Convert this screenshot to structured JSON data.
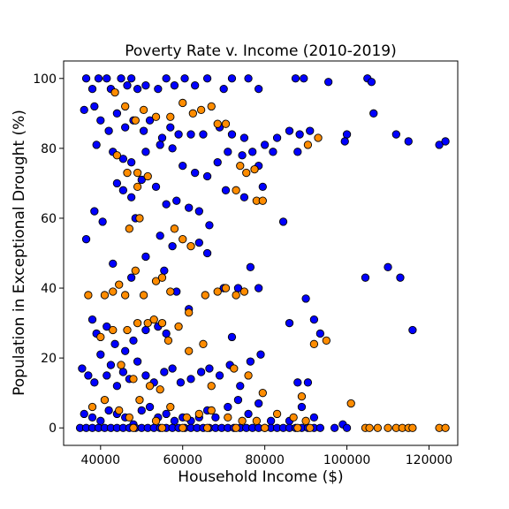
{
  "chart_data": {
    "type": "scatter",
    "title": "Poverty Rate v. Income (2010-2019)",
    "xlabel": "Household Income ($)",
    "ylabel": "Population in Exceptional Drought (%)",
    "xlim": [
      31000,
      127000
    ],
    "ylim": [
      -5,
      105
    ],
    "xticks": [
      40000,
      60000,
      80000,
      100000,
      120000
    ],
    "yticks": [
      0,
      20,
      40,
      60,
      80,
      100
    ],
    "grid": false,
    "legend": "none",
    "colors": {
      "blue": "#0000ff",
      "orange": "#ff8c00",
      "edge": "#000000"
    },
    "series": [
      {
        "color": "blue",
        "points": [
          [
            36500,
            100
          ],
          [
            38000,
            97
          ],
          [
            39500,
            100
          ],
          [
            41500,
            100
          ],
          [
            42500,
            97
          ],
          [
            45000,
            100
          ],
          [
            46500,
            98
          ],
          [
            47500,
            100
          ],
          [
            49000,
            97
          ],
          [
            51000,
            98
          ],
          [
            54000,
            97
          ],
          [
            56000,
            100
          ],
          [
            58000,
            98
          ],
          [
            60500,
            100
          ],
          [
            63000,
            98
          ],
          [
            66000,
            100
          ],
          [
            70000,
            97
          ],
          [
            72000,
            100
          ],
          [
            76000,
            100
          ],
          [
            78500,
            97
          ],
          [
            87500,
            100
          ],
          [
            89500,
            100
          ],
          [
            95500,
            99
          ],
          [
            105000,
            100
          ],
          [
            106000,
            99
          ],
          [
            36000,
            91
          ],
          [
            38500,
            92
          ],
          [
            40000,
            88
          ],
          [
            42000,
            85
          ],
          [
            44000,
            90
          ],
          [
            46000,
            86
          ],
          [
            48000,
            88
          ],
          [
            50500,
            85
          ],
          [
            52000,
            88
          ],
          [
            55000,
            83
          ],
          [
            57000,
            86
          ],
          [
            59000,
            84
          ],
          [
            62000,
            84
          ],
          [
            65000,
            84
          ],
          [
            69000,
            86
          ],
          [
            72000,
            84
          ],
          [
            75000,
            83
          ],
          [
            77000,
            79
          ],
          [
            80000,
            81
          ],
          [
            83000,
            83
          ],
          [
            86000,
            85
          ],
          [
            88500,
            84
          ],
          [
            91000,
            85
          ],
          [
            100000,
            84
          ],
          [
            106500,
            90
          ],
          [
            112000,
            84
          ],
          [
            115000,
            82
          ],
          [
            122500,
            81
          ],
          [
            124000,
            82
          ],
          [
            39000,
            81
          ],
          [
            43000,
            79
          ],
          [
            45500,
            77
          ],
          [
            47500,
            76
          ],
          [
            51000,
            79
          ],
          [
            54500,
            81
          ],
          [
            57500,
            80
          ],
          [
            60000,
            75
          ],
          [
            63000,
            73
          ],
          [
            66000,
            72
          ],
          [
            68500,
            76
          ],
          [
            71000,
            79
          ],
          [
            74500,
            78
          ],
          [
            78500,
            75
          ],
          [
            82000,
            79
          ],
          [
            88000,
            79
          ],
          [
            99500,
            82
          ],
          [
            44000,
            70
          ],
          [
            45500,
            68
          ],
          [
            47500,
            66
          ],
          [
            50000,
            71
          ],
          [
            53500,
            69
          ],
          [
            56000,
            64
          ],
          [
            58500,
            65
          ],
          [
            61500,
            63
          ],
          [
            64000,
            62
          ],
          [
            66500,
            58
          ],
          [
            70500,
            68
          ],
          [
            75000,
            66
          ],
          [
            79500,
            69
          ],
          [
            36500,
            54
          ],
          [
            38500,
            62
          ],
          [
            40500,
            59
          ],
          [
            48500,
            60
          ],
          [
            54500,
            55
          ],
          [
            57500,
            52
          ],
          [
            64000,
            53
          ],
          [
            66000,
            50
          ],
          [
            84500,
            59
          ],
          [
            43000,
            47
          ],
          [
            47500,
            43
          ],
          [
            51000,
            49
          ],
          [
            55500,
            45
          ],
          [
            58500,
            39
          ],
          [
            61500,
            34
          ],
          [
            70000,
            40
          ],
          [
            73500,
            40
          ],
          [
            76500,
            46
          ],
          [
            78500,
            40
          ],
          [
            90000,
            37
          ],
          [
            104500,
            43
          ],
          [
            110000,
            46
          ],
          [
            113000,
            43
          ],
          [
            38000,
            31
          ],
          [
            39000,
            27
          ],
          [
            41500,
            29
          ],
          [
            43500,
            24
          ],
          [
            46000,
            22
          ],
          [
            48000,
            25
          ],
          [
            51000,
            28
          ],
          [
            54000,
            29
          ],
          [
            56000,
            27
          ],
          [
            72000,
            26
          ],
          [
            86000,
            30
          ],
          [
            92000,
            31
          ],
          [
            93500,
            27
          ],
          [
            116000,
            28
          ],
          [
            35500,
            17
          ],
          [
            37000,
            15
          ],
          [
            38500,
            13
          ],
          [
            40000,
            21
          ],
          [
            41500,
            15
          ],
          [
            42500,
            18
          ],
          [
            44000,
            12
          ],
          [
            45500,
            16
          ],
          [
            47000,
            14
          ],
          [
            49000,
            19
          ],
          [
            51000,
            15
          ],
          [
            53000,
            13
          ],
          [
            55500,
            16
          ],
          [
            57500,
            17
          ],
          [
            59500,
            13
          ],
          [
            62000,
            14
          ],
          [
            64500,
            16
          ],
          [
            66500,
            17
          ],
          [
            69000,
            15
          ],
          [
            71500,
            18
          ],
          [
            74000,
            12
          ],
          [
            76500,
            19
          ],
          [
            79000,
            21
          ],
          [
            88000,
            13
          ],
          [
            90500,
            13
          ],
          [
            36000,
            4
          ],
          [
            38000,
            3
          ],
          [
            40000,
            2
          ],
          [
            42000,
            5
          ],
          [
            44000,
            4
          ],
          [
            46000,
            3
          ],
          [
            48000,
            1
          ],
          [
            50000,
            5
          ],
          [
            52000,
            6
          ],
          [
            54000,
            3
          ],
          [
            56000,
            4
          ],
          [
            58000,
            2
          ],
          [
            60000,
            3
          ],
          [
            62000,
            2
          ],
          [
            64000,
            3
          ],
          [
            66000,
            5
          ],
          [
            68000,
            3
          ],
          [
            71000,
            6
          ],
          [
            73500,
            8
          ],
          [
            76000,
            4
          ],
          [
            78500,
            7
          ],
          [
            81500,
            2
          ],
          [
            86000,
            2
          ],
          [
            89000,
            6
          ],
          [
            92000,
            3
          ],
          [
            99000,
            1
          ],
          [
            35000,
            0
          ],
          [
            36500,
            0
          ],
          [
            38000,
            0
          ],
          [
            39500,
            0
          ],
          [
            41000,
            0
          ],
          [
            42500,
            0
          ],
          [
            44000,
            0
          ],
          [
            45500,
            0
          ],
          [
            47000,
            0
          ],
          [
            48500,
            0
          ],
          [
            50000,
            0
          ],
          [
            51500,
            0
          ],
          [
            53000,
            0
          ],
          [
            54500,
            0
          ],
          [
            56000,
            0
          ],
          [
            57500,
            0
          ],
          [
            59000,
            0
          ],
          [
            60500,
            0
          ],
          [
            62000,
            0
          ],
          [
            63500,
            0
          ],
          [
            65000,
            0
          ],
          [
            66500,
            0
          ],
          [
            68000,
            0
          ],
          [
            69500,
            0
          ],
          [
            71000,
            0
          ],
          [
            72500,
            0
          ],
          [
            74000,
            0
          ],
          [
            75500,
            0
          ],
          [
            77000,
            0
          ],
          [
            78500,
            0
          ],
          [
            80000,
            0
          ],
          [
            81500,
            0
          ],
          [
            83000,
            0
          ],
          [
            84500,
            0
          ],
          [
            86000,
            0
          ],
          [
            87500,
            0
          ],
          [
            89000,
            0
          ],
          [
            90500,
            0
          ],
          [
            92000,
            0
          ],
          [
            93500,
            0
          ],
          [
            97000,
            0
          ],
          [
            100000,
            0
          ]
        ]
      },
      {
        "color": "orange",
        "points": [
          [
            43500,
            96
          ],
          [
            46000,
            92
          ],
          [
            48500,
            88
          ],
          [
            50500,
            91
          ],
          [
            53500,
            89
          ],
          [
            57000,
            89
          ],
          [
            60000,
            93
          ],
          [
            62500,
            90
          ],
          [
            64500,
            91
          ],
          [
            67000,
            92
          ],
          [
            68500,
            87
          ],
          [
            70500,
            87
          ],
          [
            93000,
            83
          ],
          [
            90500,
            81
          ],
          [
            44000,
            78
          ],
          [
            46500,
            73
          ],
          [
            49000,
            73
          ],
          [
            51500,
            72
          ],
          [
            74000,
            75
          ],
          [
            75500,
            73
          ],
          [
            77500,
            74
          ],
          [
            73000,
            68
          ],
          [
            78000,
            65
          ],
          [
            79500,
            65
          ],
          [
            49000,
            69
          ],
          [
            47000,
            57
          ],
          [
            58000,
            57
          ],
          [
            60000,
            54
          ],
          [
            49500,
            60
          ],
          [
            62000,
            52
          ],
          [
            37000,
            38
          ],
          [
            41000,
            38
          ],
          [
            43000,
            39
          ],
          [
            44500,
            41
          ],
          [
            46000,
            38
          ],
          [
            48500,
            45
          ],
          [
            50500,
            38
          ],
          [
            53500,
            42
          ],
          [
            55000,
            43
          ],
          [
            57000,
            39
          ],
          [
            61500,
            33
          ],
          [
            65500,
            38
          ],
          [
            68500,
            39
          ],
          [
            70500,
            40
          ],
          [
            73000,
            38
          ],
          [
            75000,
            39
          ],
          [
            40000,
            26
          ],
          [
            43000,
            28
          ],
          [
            46500,
            28
          ],
          [
            49000,
            30
          ],
          [
            51500,
            30
          ],
          [
            53000,
            31
          ],
          [
            55000,
            30
          ],
          [
            56500,
            25
          ],
          [
            59000,
            29
          ],
          [
            65000,
            24
          ],
          [
            92000,
            24
          ],
          [
            95000,
            25
          ],
          [
            45000,
            18
          ],
          [
            48000,
            14
          ],
          [
            52000,
            12
          ],
          [
            54500,
            11
          ],
          [
            61500,
            22
          ],
          [
            67000,
            12
          ],
          [
            72500,
            17
          ],
          [
            76000,
            15
          ],
          [
            79500,
            10
          ],
          [
            89000,
            9
          ],
          [
            38000,
            6
          ],
          [
            41000,
            8
          ],
          [
            44500,
            5
          ],
          [
            47000,
            3
          ],
          [
            49500,
            8
          ],
          [
            53500,
            2
          ],
          [
            57000,
            6
          ],
          [
            61000,
            3
          ],
          [
            64000,
            4
          ],
          [
            67000,
            5
          ],
          [
            71000,
            3
          ],
          [
            74500,
            2
          ],
          [
            78000,
            2
          ],
          [
            83000,
            4
          ],
          [
            87000,
            3
          ],
          [
            90000,
            2
          ],
          [
            101000,
            7
          ],
          [
            48000,
            0
          ],
          [
            55000,
            0
          ],
          [
            60000,
            0
          ],
          [
            66000,
            0
          ],
          [
            73000,
            0
          ],
          [
            80000,
            0
          ],
          [
            88000,
            0
          ],
          [
            91000,
            0
          ],
          [
            104500,
            0
          ],
          [
            105500,
            0
          ],
          [
            107500,
            0
          ],
          [
            110000,
            0
          ],
          [
            112000,
            0
          ],
          [
            113500,
            0
          ],
          [
            115000,
            0
          ],
          [
            116000,
            0
          ],
          [
            122500,
            0
          ],
          [
            124000,
            0
          ]
        ]
      }
    ]
  }
}
